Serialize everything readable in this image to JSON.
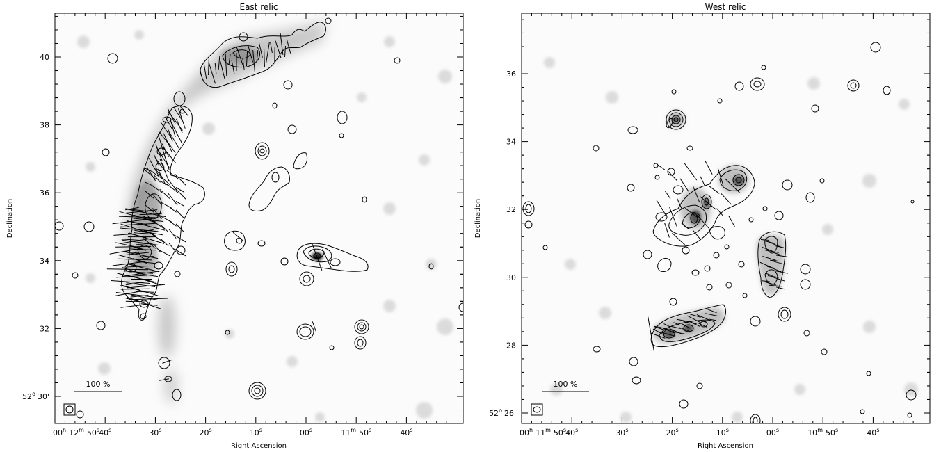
{
  "chart_data": [
    {
      "type": "contour_map",
      "title": "East relic",
      "xlabel": "Right Ascension",
      "ylabel": "Declination",
      "x_ticks": [
        {
          "h": "00",
          "m": "12",
          "s": "50"
        },
        {
          "s": "40"
        },
        {
          "s": "30"
        },
        {
          "s": "20"
        },
        {
          "s": "10"
        },
        {
          "s": "00"
        },
        {
          "m": "11",
          "s": "50"
        },
        {
          "s": "40"
        }
      ],
      "y_ticks": [
        {
          "deg": "52",
          "arcmin": "30'"
        },
        {
          "label": "32"
        },
        {
          "label": "34"
        },
        {
          "label": "36"
        },
        {
          "label": "38"
        },
        {
          "label": "40"
        }
      ],
      "ylim_arcmin": [
        29.25,
        41.1
      ],
      "scale_bar_label": "100 %",
      "contour_color": "#000000",
      "greyscale": "#9a9a9a"
    },
    {
      "type": "contour_map",
      "title": "West relic",
      "xlabel": "Right Ascension",
      "ylabel": "Declination",
      "x_ticks": [
        {
          "h": "00",
          "m": "11",
          "s": "50"
        },
        {
          "s": "40"
        },
        {
          "s": "30"
        },
        {
          "s": "20"
        },
        {
          "s": "10"
        },
        {
          "s": "00"
        },
        {
          "m": "10",
          "s": "50"
        },
        {
          "s": "40"
        }
      ],
      "y_ticks": [
        {
          "deg": "52",
          "arcmin": "26'"
        },
        {
          "label": "28"
        },
        {
          "label": "30"
        },
        {
          "label": "32"
        },
        {
          "label": "34"
        },
        {
          "label": "36"
        }
      ],
      "ylim_arcmin": [
        25.6,
        37.8
      ],
      "scale_bar_label": "100 %",
      "contour_color": "#000000",
      "greyscale": "#9a9a9a"
    }
  ]
}
